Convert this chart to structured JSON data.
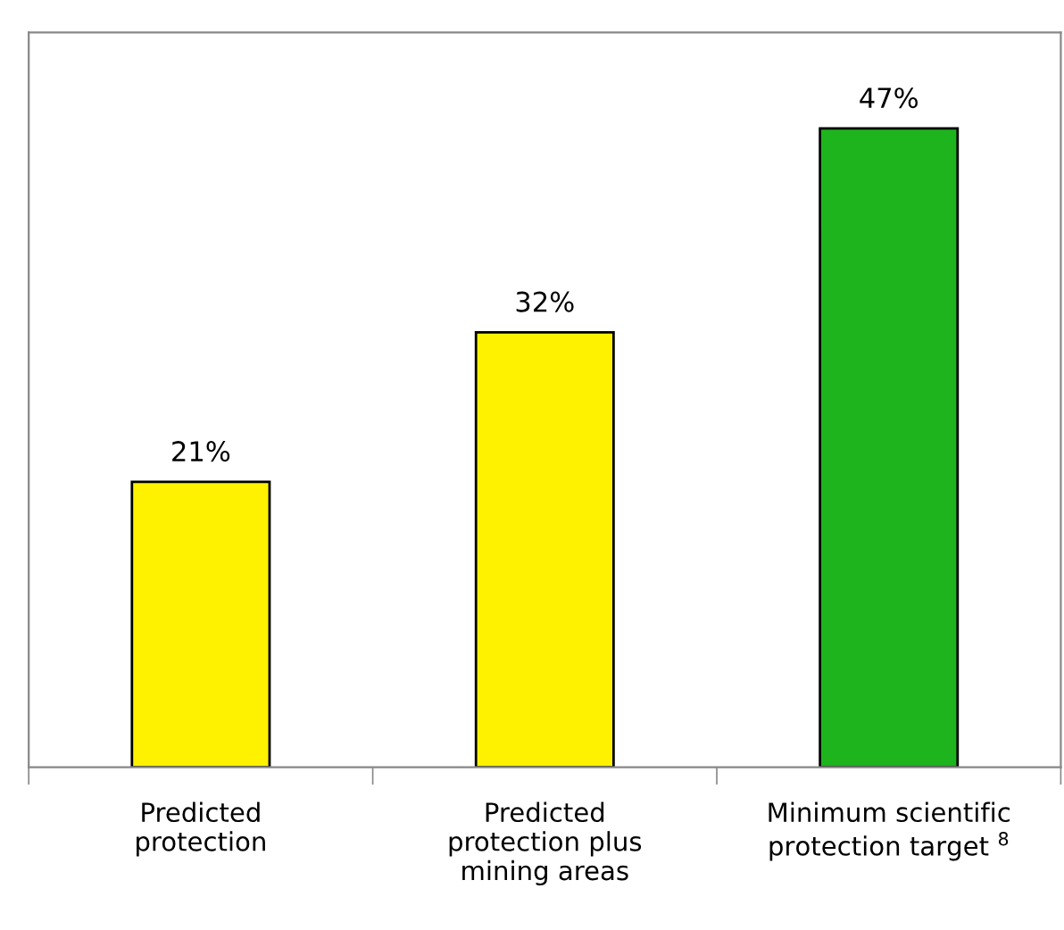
{
  "chart_data": {
    "type": "bar",
    "categories": [
      "Predicted\nprotection",
      "Predicted\nprotection plus\nmining areas",
      "Minimum scientific\nprotection target $^{8}$"
    ],
    "values": [
      21,
      32,
      47
    ],
    "colors": [
      "#fff200",
      "#fff200",
      "#1eb41e"
    ],
    "value_labels": [
      "21%",
      "32%",
      "47%"
    ],
    "grid": false,
    "legend": false
  }
}
